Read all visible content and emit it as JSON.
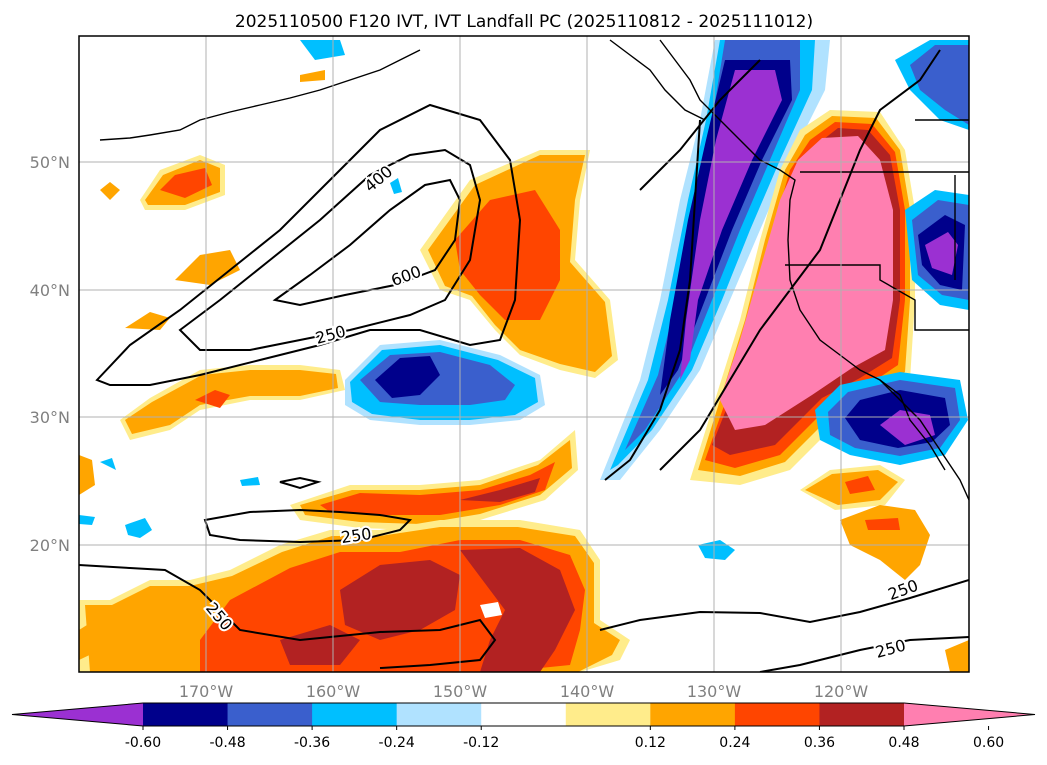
{
  "title": "2025110500 F120 IVT, IVT Landfall PC (2025110812 - 2025111012)",
  "lat_labels": [
    "50°N",
    "40°N",
    "30°N",
    "20°N"
  ],
  "lon_labels": [
    "170°W",
    "160°W",
    "150°W",
    "140°W",
    "130°W",
    "120°W"
  ],
  "contour_labels": [
    "400",
    "600",
    "250",
    "250",
    "250",
    "250",
    "250"
  ],
  "colorbar": {
    "ticks": [
      "-0.60",
      "-0.48",
      "-0.36",
      "-0.24",
      "-0.12",
      "0.12",
      "0.24",
      "0.36",
      "0.48",
      "0.60"
    ],
    "colors": [
      "#9b30d2",
      "#00008b",
      "#3a5fcd",
      "#00bfff",
      "#b0e2ff",
      "#ffffff",
      "#ffec8b",
      "#ffa500",
      "#ff4500",
      "#b22222",
      "#ff7fb0"
    ]
  }
}
